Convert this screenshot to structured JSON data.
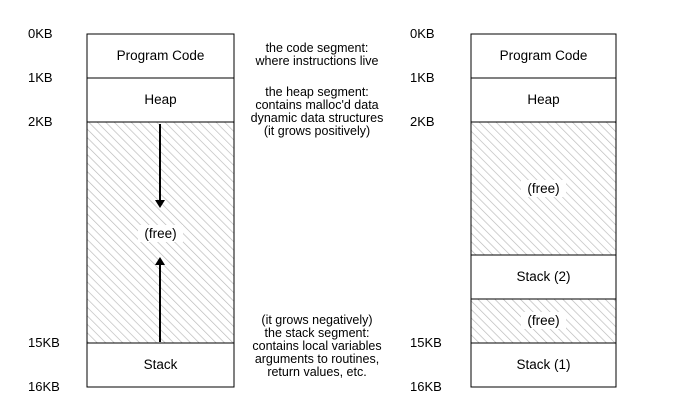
{
  "left_space": {
    "addresses": [
      "0KB",
      "1KB",
      "2KB",
      "15KB",
      "16KB"
    ],
    "segments": {
      "code": "Program Code",
      "heap": "Heap",
      "free": "(free)",
      "stack": "Stack"
    },
    "annotations": {
      "code": [
        "the code segment:",
        "where instructions live"
      ],
      "heap": [
        "the heap segment:",
        "contains malloc'd data",
        "dynamic data structures",
        "(it grows positively)"
      ],
      "stack": [
        "(it grows negatively)",
        "the stack segment:",
        "contains local variables",
        "arguments to routines,",
        "return values, etc."
      ]
    }
  },
  "right_space": {
    "addresses": [
      "0KB",
      "1KB",
      "2KB",
      "15KB",
      "16KB"
    ],
    "segments": {
      "code": "Program Code",
      "heap": "Heap",
      "free_top": "(free)",
      "stack2": "Stack (2)",
      "free_bottom": "(free)",
      "stack1": "Stack (1)"
    }
  },
  "colors": {
    "stroke": "#000000",
    "hatch": "#b8b8b8",
    "background": "#ffffff"
  }
}
